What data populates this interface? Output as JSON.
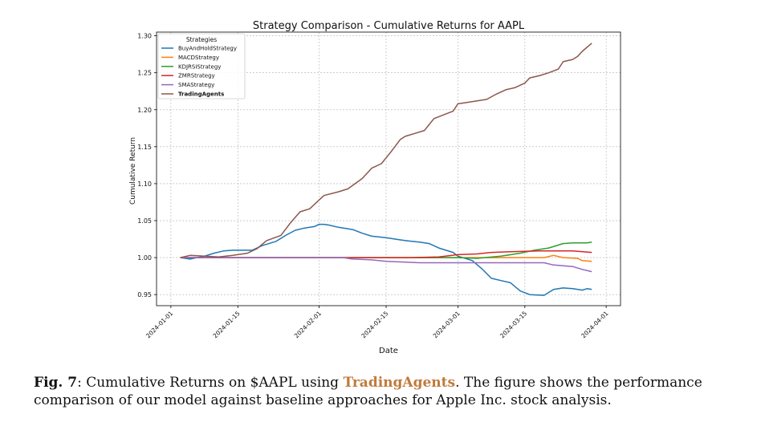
{
  "chart_data": {
    "type": "line",
    "title": "Strategy Comparison - Cumulative Returns for AAPL",
    "xlabel": "Date",
    "ylabel": "Cumulative Return",
    "xlim": [
      "2024-01-01",
      "2024-04-01"
    ],
    "ylim": [
      0.935,
      1.305
    ],
    "xticks": [
      "2024-01-01",
      "2024-01-15",
      "2024-02-01",
      "2024-02-15",
      "2024-03-01",
      "2024-03-15",
      "2024-04-01"
    ],
    "yticks": [
      "0.95",
      "1.00",
      "1.05",
      "1.10",
      "1.15",
      "1.20",
      "1.25",
      "1.30"
    ],
    "grid": true,
    "legend_title": "Strategies",
    "legend_position": "top-left",
    "series": [
      {
        "name": "BuyAndHoldStrategy",
        "color": "#1f77b4",
        "points": [
          [
            "2024-01-03",
            1.0
          ],
          [
            "2024-01-05",
            0.998
          ],
          [
            "2024-01-08",
            1.002
          ],
          [
            "2024-01-10",
            1.006
          ],
          [
            "2024-01-12",
            1.009
          ],
          [
            "2024-01-14",
            1.01
          ],
          [
            "2024-01-17",
            1.01
          ],
          [
            "2024-01-18",
            1.01
          ],
          [
            "2024-01-20",
            1.016
          ],
          [
            "2024-01-23",
            1.022
          ],
          [
            "2024-01-25",
            1.03
          ],
          [
            "2024-01-27",
            1.037
          ],
          [
            "2024-01-29",
            1.04
          ],
          [
            "2024-01-31",
            1.042
          ],
          [
            "2024-02-01",
            1.045
          ],
          [
            "2024-02-02",
            1.045
          ],
          [
            "2024-02-03",
            1.044
          ],
          [
            "2024-02-05",
            1.041
          ],
          [
            "2024-02-08",
            1.038
          ],
          [
            "2024-02-10",
            1.033
          ],
          [
            "2024-02-12",
            1.029
          ],
          [
            "2024-02-15",
            1.027
          ],
          [
            "2024-02-17",
            1.025
          ],
          [
            "2024-02-19",
            1.023
          ],
          [
            "2024-02-22",
            1.021
          ],
          [
            "2024-02-24",
            1.019
          ],
          [
            "2024-02-26",
            1.013
          ],
          [
            "2024-02-29",
            1.007
          ],
          [
            "2024-03-01",
            1.002
          ],
          [
            "2024-03-03",
            0.998
          ],
          [
            "2024-03-04",
            0.996
          ],
          [
            "2024-03-06",
            0.985
          ],
          [
            "2024-03-08",
            0.972
          ],
          [
            "2024-03-10",
            0.969
          ],
          [
            "2024-03-12",
            0.966
          ],
          [
            "2024-03-14",
            0.955
          ],
          [
            "2024-03-16",
            0.95
          ],
          [
            "2024-03-19",
            0.949
          ],
          [
            "2024-03-21",
            0.957
          ],
          [
            "2024-03-23",
            0.959
          ],
          [
            "2024-03-25",
            0.958
          ],
          [
            "2024-03-27",
            0.956
          ],
          [
            "2024-03-28",
            0.958
          ],
          [
            "2024-03-29",
            0.957
          ]
        ]
      },
      {
        "name": "MACDStrategy",
        "color": "#ff7f0e",
        "points": [
          [
            "2024-01-03",
            1.0
          ],
          [
            "2024-01-06",
            1.0
          ],
          [
            "2024-01-10",
            1.0
          ],
          [
            "2024-02-01",
            1.0
          ],
          [
            "2024-03-01",
            1.0
          ],
          [
            "2024-03-19",
            1.0
          ],
          [
            "2024-03-21",
            1.003
          ],
          [
            "2024-03-23",
            1.0
          ],
          [
            "2024-03-26",
            0.999
          ],
          [
            "2024-03-27",
            0.996
          ],
          [
            "2024-03-29",
            0.995
          ]
        ]
      },
      {
        "name": "KDJRSIStrategy",
        "color": "#2ca02c",
        "points": [
          [
            "2024-01-03",
            1.0
          ],
          [
            "2024-01-10",
            1.0
          ],
          [
            "2024-02-01",
            1.0
          ],
          [
            "2024-03-01",
            1.0
          ],
          [
            "2024-03-05",
            0.999
          ],
          [
            "2024-03-10",
            1.002
          ],
          [
            "2024-03-14",
            1.006
          ],
          [
            "2024-03-17",
            1.01
          ],
          [
            "2024-03-20",
            1.013
          ],
          [
            "2024-03-23",
            1.019
          ],
          [
            "2024-03-25",
            1.02
          ],
          [
            "2024-03-28",
            1.02
          ],
          [
            "2024-03-29",
            1.021
          ]
        ]
      },
      {
        "name": "ZMRStrategy",
        "color": "#d62728",
        "points": [
          [
            "2024-01-03",
            1.0
          ],
          [
            "2024-01-10",
            1.0
          ],
          [
            "2024-02-01",
            1.0
          ],
          [
            "2024-02-20",
            1.0
          ],
          [
            "2024-02-26",
            1.001
          ],
          [
            "2024-03-01",
            1.004
          ],
          [
            "2024-03-05",
            1.005
          ],
          [
            "2024-03-08",
            1.007
          ],
          [
            "2024-03-12",
            1.008
          ],
          [
            "2024-03-18",
            1.009
          ],
          [
            "2024-03-25",
            1.009
          ],
          [
            "2024-03-29",
            1.007
          ]
        ]
      },
      {
        "name": "SMAStrategy",
        "color": "#9467bd",
        "points": [
          [
            "2024-01-03",
            1.0
          ],
          [
            "2024-02-06",
            1.0
          ],
          [
            "2024-02-08",
            0.998
          ],
          [
            "2024-02-12",
            0.997
          ],
          [
            "2024-02-15",
            0.995
          ],
          [
            "2024-02-22",
            0.993
          ],
          [
            "2024-03-01",
            0.993
          ],
          [
            "2024-03-19",
            0.993
          ],
          [
            "2024-03-21",
            0.99
          ],
          [
            "2024-03-25",
            0.988
          ],
          [
            "2024-03-27",
            0.984
          ],
          [
            "2024-03-29",
            0.981
          ]
        ]
      },
      {
        "name": "TradingAgents",
        "color": "#8c564b",
        "points": [
          [
            "2024-01-03",
            1.0
          ],
          [
            "2024-01-05",
            1.003
          ],
          [
            "2024-01-08",
            1.002
          ],
          [
            "2024-01-11",
            1.001
          ],
          [
            "2024-01-14",
            1.003
          ],
          [
            "2024-01-17",
            1.006
          ],
          [
            "2024-01-19",
            1.012
          ],
          [
            "2024-01-21",
            1.023
          ],
          [
            "2024-01-24",
            1.03
          ],
          [
            "2024-01-26",
            1.047
          ],
          [
            "2024-01-28",
            1.062
          ],
          [
            "2024-01-30",
            1.066
          ],
          [
            "2024-02-01",
            1.078
          ],
          [
            "2024-02-02",
            1.084
          ],
          [
            "2024-02-05",
            1.089
          ],
          [
            "2024-02-07",
            1.093
          ],
          [
            "2024-02-10",
            1.107
          ],
          [
            "2024-02-12",
            1.121
          ],
          [
            "2024-02-14",
            1.127
          ],
          [
            "2024-02-16",
            1.143
          ],
          [
            "2024-02-18",
            1.16
          ],
          [
            "2024-02-19",
            1.164
          ],
          [
            "2024-02-21",
            1.168
          ],
          [
            "2024-02-23",
            1.172
          ],
          [
            "2024-02-25",
            1.188
          ],
          [
            "2024-02-27",
            1.193
          ],
          [
            "2024-02-29",
            1.198
          ],
          [
            "2024-03-01",
            1.208
          ],
          [
            "2024-03-03",
            1.21
          ],
          [
            "2024-03-05",
            1.212
          ],
          [
            "2024-03-07",
            1.214
          ],
          [
            "2024-03-09",
            1.221
          ],
          [
            "2024-03-11",
            1.227
          ],
          [
            "2024-03-13",
            1.23
          ],
          [
            "2024-03-15",
            1.236
          ],
          [
            "2024-03-16",
            1.243
          ],
          [
            "2024-03-18",
            1.246
          ],
          [
            "2024-03-20",
            1.25
          ],
          [
            "2024-03-22",
            1.255
          ],
          [
            "2024-03-23",
            1.265
          ],
          [
            "2024-03-25",
            1.268
          ],
          [
            "2024-03-26",
            1.272
          ],
          [
            "2024-03-27",
            1.279
          ],
          [
            "2024-03-29",
            1.29
          ]
        ]
      }
    ]
  },
  "caption": {
    "fig_label": "Fig. 7",
    "text_before": ": Cumulative Returns on $AAPL using ",
    "highlight": "TradingAgents",
    "text_after": ". The figure shows the performance comparison of our model against baseline approaches for Apple Inc. stock analysis."
  }
}
